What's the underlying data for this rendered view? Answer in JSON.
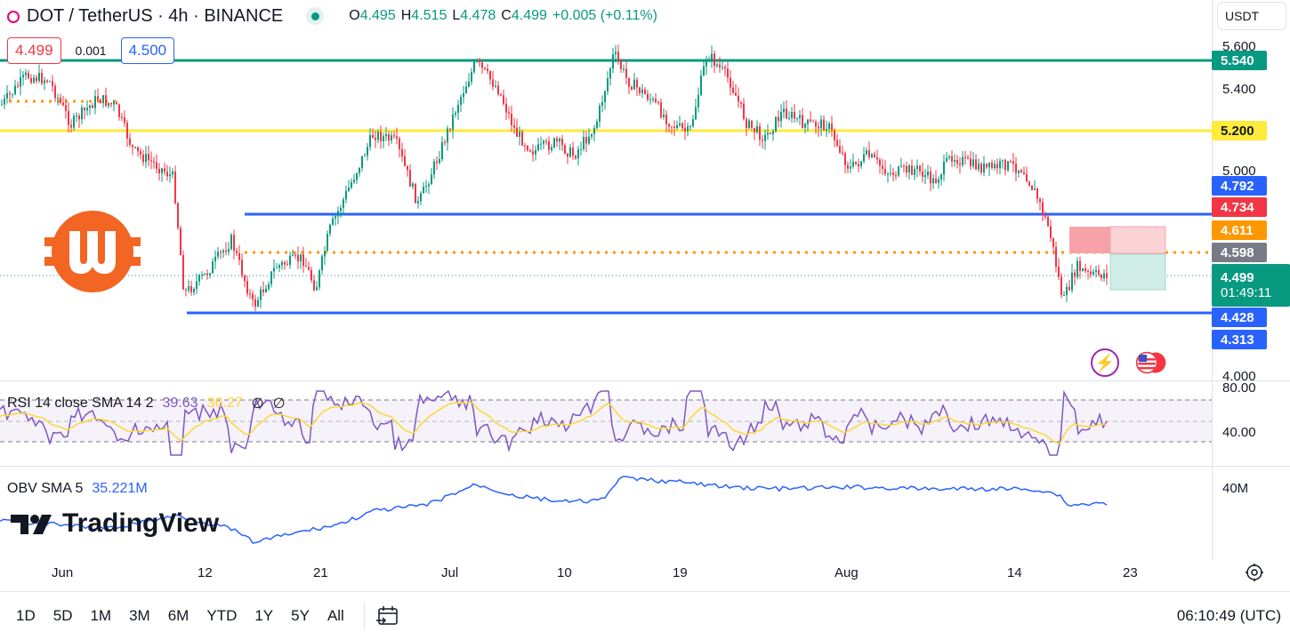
{
  "header": {
    "symbol": "DOT / TetherUS · 4h · BINANCE",
    "ohlc": [
      {
        "label": "O",
        "value": "4.495"
      },
      {
        "label": "H",
        "value": "4.515"
      },
      {
        "label": "L",
        "value": "4.478"
      },
      {
        "label": "C",
        "value": "4.499"
      }
    ],
    "change": "+0.005 (+0.11%)"
  },
  "trade": {
    "sell": "4.499",
    "spread": "0.001",
    "buy": "4.500"
  },
  "currency": {
    "label": "USDT",
    "chevron": "chevron-down-icon"
  },
  "price_axis": {
    "ticks": [
      "5.600",
      "5.400",
      "5.000",
      "4.000"
    ],
    "badges": {
      "level_5540": "5.540",
      "level_5200": "5.200",
      "level_4792": "4.792",
      "level_4734": "4.734",
      "level_4611": "4.611",
      "level_4598": "4.598",
      "last_price": "4.499",
      "countdown": "01:49:11",
      "level_4428": "4.428",
      "level_4313": "4.313"
    }
  },
  "colors": {
    "up": "#089981",
    "down": "#f23645",
    "blue_line": "#2962ff",
    "yellow_line": "#ffeb3b",
    "green_line": "#089981",
    "orange_line": "#ff9800",
    "rsi": "#7e57c2",
    "rsi_sma": "#fdd835",
    "obv": "#2962ff",
    "brand": "#f26522"
  },
  "rsi": {
    "name": "RSI 14 close SMA 14 2",
    "value": "39.63",
    "sma": "36.27",
    "extra1": "∅",
    "extra2": "∅",
    "ticks": [
      "80.00",
      "40.00"
    ]
  },
  "obv": {
    "name": "OBV SMA 5",
    "value": "35.221M",
    "tick": "40M"
  },
  "brand": {
    "name": "TradingView"
  },
  "time_axis": [
    "Jun",
    "12",
    "21",
    "Jul",
    "10",
    "19",
    "Aug",
    "14",
    "23"
  ],
  "toolbar": {
    "ranges": [
      "1D",
      "5D",
      "1M",
      "3M",
      "6M",
      "YTD",
      "1Y",
      "5Y",
      "All"
    ],
    "clock": "06:10:49 (UTC)"
  },
  "icons": {
    "settings": "gear-icon",
    "date_range": "calendar-range-icon",
    "flash": "lightning-icon",
    "flags": "us-flag-icon"
  }
}
